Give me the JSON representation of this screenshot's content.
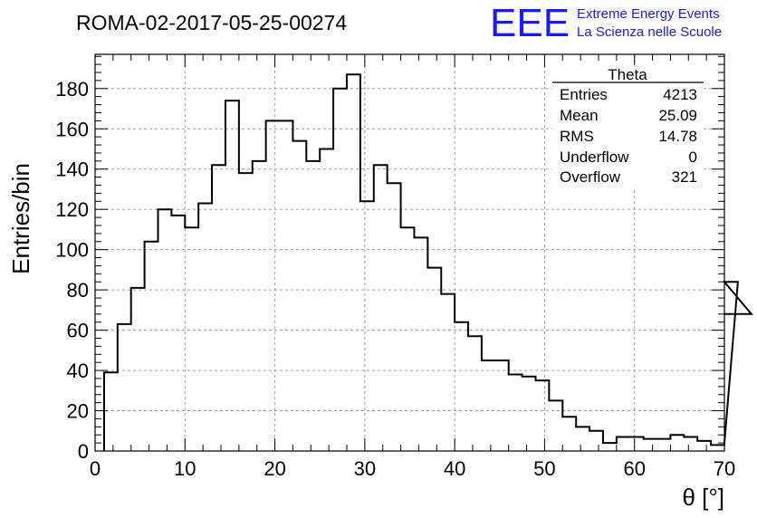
{
  "header": {
    "run_title": "ROMA-02-2017-05-25-00274",
    "logo": {
      "letters": "EEE",
      "line1": "Extreme Energy Events",
      "line2": "La Scienza nelle Scuole",
      "color": "#1a1aff"
    }
  },
  "stats_box": {
    "title": "Theta",
    "rows": [
      {
        "label": "Entries",
        "value": "4213"
      },
      {
        "label": "Mean",
        "value": "25.09"
      },
      {
        "label": "RMS",
        "value": "14.78"
      },
      {
        "label": "Underflow",
        "value": "0"
      },
      {
        "label": "Overflow",
        "value": "321"
      }
    ]
  },
  "chart_data": {
    "type": "bar",
    "subtype": "step-histogram",
    "title": "ROMA-02-2017-05-25-00274",
    "xlabel": "θ [°]",
    "ylabel": "Entries/bin",
    "xlim": [
      0,
      70
    ],
    "ylim": [
      0,
      197
    ],
    "bin_width": 1.5,
    "bin_edges_start": 1,
    "x_ticks": [
      0,
      10,
      20,
      30,
      40,
      50,
      60,
      70
    ],
    "y_ticks": [
      0,
      20,
      40,
      60,
      80,
      100,
      120,
      140,
      160,
      180
    ],
    "grid": true,
    "grid_style": "dashed",
    "line_color": "#000000",
    "values": [
      39,
      63,
      81,
      104,
      120,
      117,
      111,
      123,
      142,
      174,
      138,
      144,
      164,
      164,
      154,
      144,
      150,
      180,
      187,
      124,
      142,
      133,
      111,
      106,
      91,
      78,
      64,
      57,
      45,
      45,
      38,
      37,
      35,
      25,
      17,
      12,
      10,
      4,
      7,
      7,
      6,
      6,
      8,
      7,
      5,
      3,
      4,
      84,
      68
    ]
  }
}
